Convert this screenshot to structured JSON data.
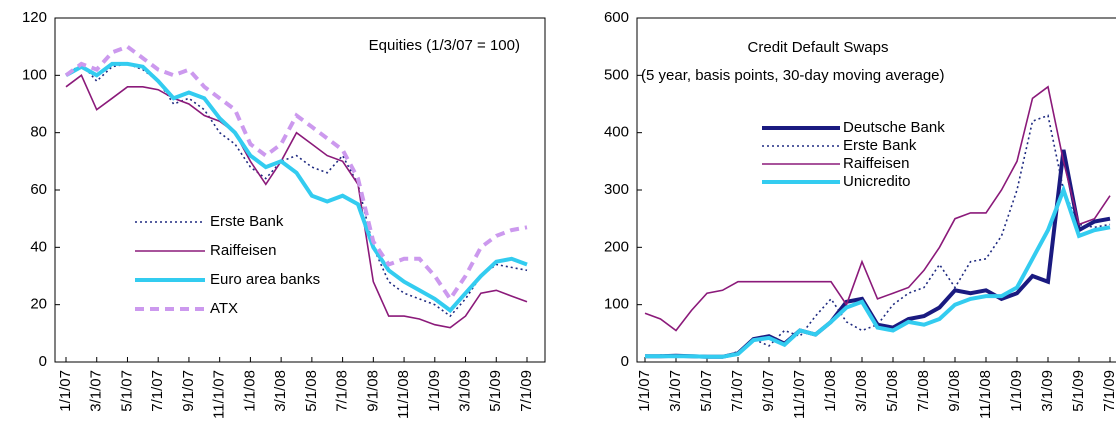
{
  "chart_data": [
    {
      "type": "line",
      "annotations": [
        "Equities (1/3/07 = 100)"
      ],
      "x": [
        "1/1/07",
        "2/1/07",
        "3/1/07",
        "4/1/07",
        "5/1/07",
        "6/1/07",
        "7/1/07",
        "8/1/07",
        "9/1/07",
        "10/1/07",
        "11/1/07",
        "12/1/07",
        "1/1/08",
        "2/1/08",
        "3/1/08",
        "4/1/08",
        "5/1/08",
        "6/1/08",
        "7/1/08",
        "8/1/08",
        "9/1/08",
        "10/1/08",
        "11/1/08",
        "12/1/08",
        "1/1/09",
        "2/1/09",
        "3/1/09",
        "4/1/09",
        "5/1/09",
        "6/1/09",
        "7/1/09"
      ],
      "xticks": [
        "1/1/07",
        "3/1/07",
        "5/1/07",
        "7/1/07",
        "9/1/07",
        "11/1/07",
        "1/1/08",
        "3/1/08",
        "5/1/08",
        "7/1/08",
        "9/1/08",
        "11/1/08",
        "1/1/09",
        "3/1/09",
        "5/1/09",
        "7/1/09"
      ],
      "ylim": [
        0,
        120
      ],
      "yticks": [
        0,
        20,
        40,
        60,
        80,
        100,
        120
      ],
      "legend": "lower-left",
      "series": [
        {
          "name": "Erste Bank",
          "color": "#1f2a80",
          "dash": "dotted",
          "thick": false,
          "values": [
            100,
            104,
            98,
            103,
            104,
            102,
            98,
            90,
            92,
            88,
            80,
            76,
            68,
            64,
            70,
            72,
            68,
            66,
            72,
            62,
            40,
            28,
            24,
            22,
            20,
            16,
            22,
            30,
            34,
            33,
            32
          ]
        },
        {
          "name": "Raiffeisen",
          "color": "#8b1a7a",
          "dash": "solid",
          "thick": false,
          "values": [
            96,
            100,
            88,
            92,
            96,
            96,
            95,
            92,
            90,
            86,
            84,
            80,
            70,
            62,
            70,
            80,
            76,
            72,
            70,
            62,
            28,
            16,
            16,
            15,
            13,
            12,
            16,
            24,
            25,
            23,
            21
          ]
        },
        {
          "name": "Euro area banks",
          "color": "#33ccf0",
          "dash": "solid",
          "thick": true,
          "values": [
            100,
            103,
            100,
            104,
            104,
            103,
            98,
            92,
            94,
            92,
            85,
            80,
            72,
            68,
            70,
            66,
            58,
            56,
            58,
            55,
            40,
            32,
            28,
            25,
            22,
            18,
            24,
            30,
            35,
            36,
            34
          ]
        },
        {
          "name": "ATX",
          "color": "#cc99ee",
          "dash": "dashed",
          "thick": true,
          "values": [
            100,
            104,
            102,
            108,
            110,
            106,
            102,
            100,
            102,
            96,
            92,
            88,
            76,
            72,
            76,
            86,
            82,
            78,
            74,
            64,
            42,
            34,
            36,
            36,
            30,
            22,
            30,
            40,
            44,
            46,
            47
          ]
        }
      ]
    },
    {
      "type": "line",
      "annotations": [
        "Credit Default Swaps",
        "(5 year, basis points, 30-day moving average)"
      ],
      "x": [
        "1/1/07",
        "2/1/07",
        "3/1/07",
        "4/1/07",
        "5/1/07",
        "6/1/07",
        "7/1/07",
        "8/1/07",
        "9/1/07",
        "10/1/07",
        "11/1/07",
        "12/1/07",
        "1/1/08",
        "2/1/08",
        "3/1/08",
        "4/1/08",
        "5/1/08",
        "6/1/08",
        "7/1/08",
        "8/1/08",
        "9/1/08",
        "10/1/08",
        "11/1/08",
        "12/1/08",
        "1/1/09",
        "2/1/09",
        "3/1/09",
        "4/1/09",
        "5/1/09",
        "6/1/09",
        "7/1/09"
      ],
      "xticks": [
        "1/1/07",
        "3/1/07",
        "5/1/07",
        "7/1/07",
        "9/1/07",
        "11/1/07",
        "1/1/08",
        "3/1/08",
        "5/1/08",
        "7/1/08",
        "9/1/08",
        "11/1/08",
        "1/1/09",
        "3/1/09",
        "5/1/09",
        "7/1/09"
      ],
      "ylim": [
        0,
        600
      ],
      "yticks": [
        0,
        100,
        200,
        300,
        400,
        500,
        600
      ],
      "legend": "upper-center",
      "series": [
        {
          "name": "Deutsche Bank",
          "color": "#1a1a80",
          "dash": "solid",
          "thick": true,
          "values": [
            10,
            10,
            11,
            10,
            9,
            9,
            15,
            40,
            45,
            32,
            55,
            48,
            70,
            105,
            110,
            65,
            60,
            75,
            80,
            95,
            125,
            120,
            125,
            110,
            120,
            150,
            140,
            370,
            230,
            245,
            250
          ]
        },
        {
          "name": "Erste Bank",
          "color": "#1f2a80",
          "dash": "dotted",
          "thick": false,
          "values": [
            10,
            12,
            12,
            11,
            10,
            10,
            18,
            40,
            28,
            55,
            45,
            80,
            110,
            70,
            55,
            65,
            100,
            120,
            130,
            170,
            130,
            175,
            180,
            220,
            300,
            420,
            430,
            300,
            240,
            235,
            240
          ]
        },
        {
          "name": "Raiffeisen",
          "color": "#8b1a7a",
          "dash": "solid",
          "thick": false,
          "values": [
            85,
            75,
            55,
            90,
            120,
            125,
            140,
            140,
            140,
            140,
            140,
            140,
            140,
            100,
            175,
            110,
            120,
            130,
            160,
            200,
            250,
            260,
            260,
            300,
            350,
            460,
            480,
            350,
            240,
            250,
            290
          ]
        },
        {
          "name": "Unicredito",
          "color": "#33ccf0",
          "dash": "solid",
          "thick": true,
          "values": [
            10,
            10,
            10,
            10,
            9,
            9,
            14,
            38,
            42,
            30,
            55,
            48,
            70,
            95,
            105,
            60,
            55,
            70,
            65,
            75,
            100,
            110,
            115,
            115,
            130,
            180,
            230,
            300,
            220,
            230,
            235
          ]
        }
      ]
    }
  ]
}
